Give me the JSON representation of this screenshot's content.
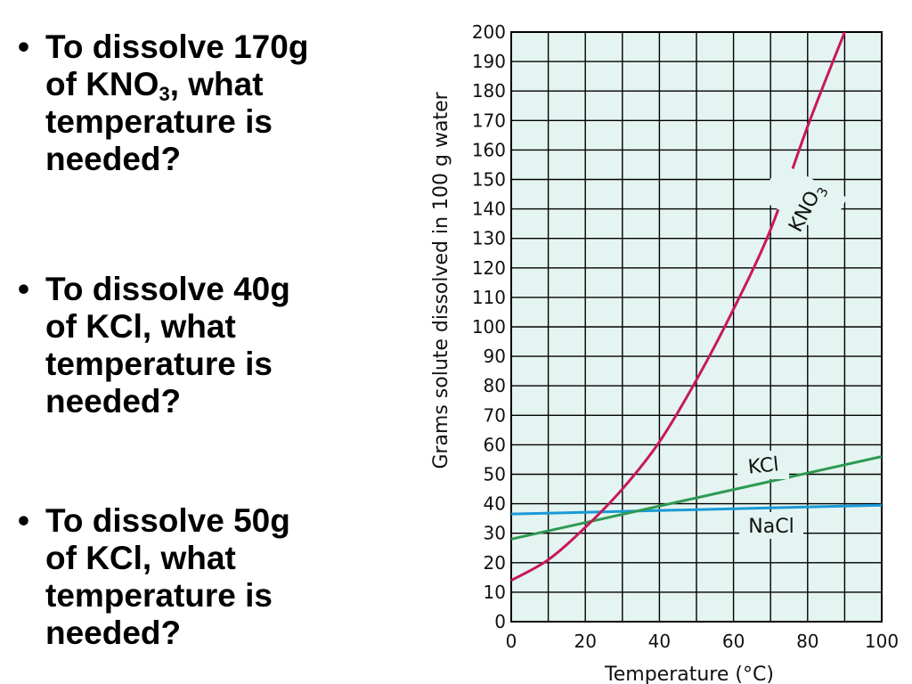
{
  "questions": [
    {
      "bullet": "•",
      "lines": [
        "To dissolve 170g",
        "of KNO",
        "temperature is",
        "needed?"
      ],
      "sub": "3",
      "line2_suffix": ", what"
    },
    {
      "bullet": "•",
      "lines": [
        "To dissolve 40g",
        "of KCl, what",
        "temperature is",
        "needed?"
      ]
    },
    {
      "bullet": "•",
      "lines": [
        "To dissolve 50g",
        "of KCl, what",
        "temperature is",
        "needed?"
      ]
    }
  ],
  "colors": {
    "grid_bg": "#e4f4f1",
    "grid_line": "#000000",
    "kno3": "#c8185a",
    "kcl": "#2e9a52",
    "nacl": "#1a9ad6"
  },
  "chart_data": {
    "type": "line",
    "xlabel": "Temperature (°C)",
    "ylabel": "Grams solute dissolved in 100 g water",
    "xlim": [
      0,
      100
    ],
    "ylim": [
      0,
      200
    ],
    "x_ticks": [
      "0",
      "20",
      "40",
      "60",
      "80",
      "100"
    ],
    "y_ticks": [
      "0",
      "10",
      "20",
      "30",
      "40",
      "50",
      "60",
      "70",
      "80",
      "90",
      "100",
      "110",
      "120",
      "130",
      "140",
      "150",
      "160",
      "170",
      "180",
      "190",
      "200"
    ],
    "grid": true,
    "series": [
      {
        "name": "KNO3",
        "label_main": "KNO",
        "label_sub": "3",
        "color": "#c8185a",
        "x": [
          0,
          10,
          20,
          30,
          40,
          50,
          60,
          70,
          80,
          90
        ],
        "y": [
          14,
          21,
          32,
          45,
          61,
          82,
          106,
          133,
          168,
          200
        ]
      },
      {
        "name": "KCl",
        "label_main": "KCl",
        "color": "#2e9a52",
        "x": [
          0,
          100
        ],
        "y": [
          28,
          56
        ]
      },
      {
        "name": "NaCl",
        "label_main": "NaCl",
        "color": "#1a9ad6",
        "x": [
          0,
          100
        ],
        "y": [
          36.5,
          39.5
        ]
      }
    ]
  }
}
